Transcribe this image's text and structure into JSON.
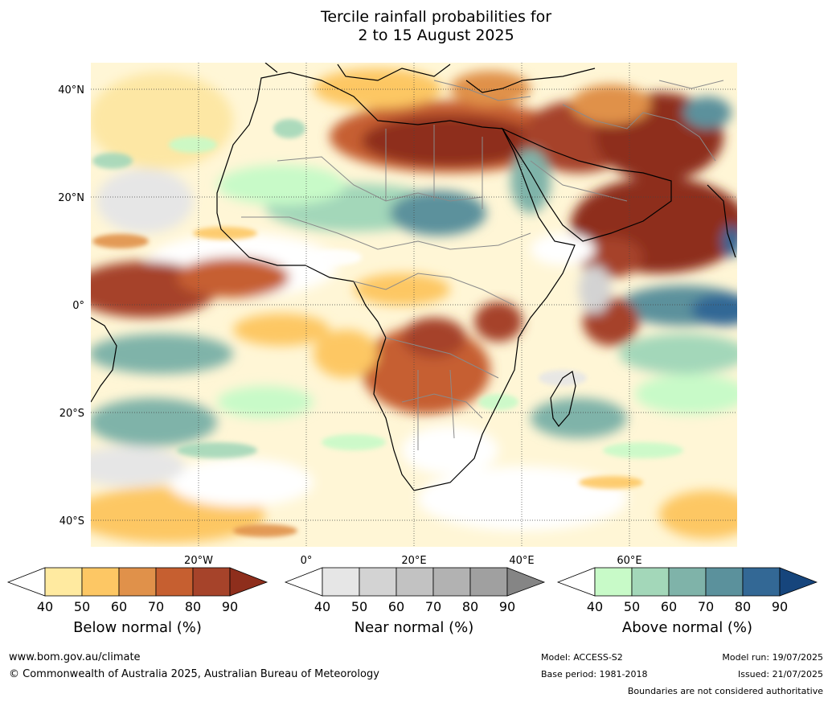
{
  "title": {
    "line1": "Tercile rainfall probabilities for",
    "line2": "2 to 15 August 2025"
  },
  "axes": {
    "lat_labels": [
      "40°N",
      "20°N",
      "0°",
      "20°S",
      "40°S"
    ],
    "lon_labels": [
      "20°W",
      "0°",
      "20°E",
      "40°E",
      "60°E"
    ]
  },
  "colorbars": [
    {
      "name": "below",
      "label": "Below normal (%)",
      "ticks": [
        "40",
        "50",
        "60",
        "70",
        "80",
        "90"
      ],
      "colors": [
        "#ffffff",
        "#ffeaa0",
        "#fdc764",
        "#e0914a",
        "#c65f30",
        "#a6432a",
        "#8e2e1c"
      ]
    },
    {
      "name": "near",
      "label": "Near normal (%)",
      "ticks": [
        "40",
        "50",
        "60",
        "70",
        "80",
        "90"
      ],
      "colors": [
        "#ffffff",
        "#e6e6e6",
        "#d3d3d3",
        "#c2c2c2",
        "#b2b2b2",
        "#a0a0a0",
        "#858585"
      ]
    },
    {
      "name": "above",
      "label": "Above normal (%)",
      "ticks": [
        "40",
        "50",
        "60",
        "70",
        "80",
        "90"
      ],
      "colors": [
        "#ffffff",
        "#c8fac8",
        "#a3d7b9",
        "#7fb3a9",
        "#5b919c",
        "#336895",
        "#16457c"
      ]
    }
  ],
  "footer": {
    "url": "www.bom.gov.au/climate",
    "copyright": "© Commonwealth of Australia 2025, Australian Bureau of Meteorology",
    "model": "Model: ACCESS-S2",
    "base_period": "Base period: 1981-2018",
    "model_run": "Model run: 19/07/2025",
    "issued": "Issued: 21/07/2025",
    "disclaimer": "Boundaries are not considered authoritative"
  },
  "map_colors": {
    "ocean_base": "#fff6d6",
    "coast": "#000000",
    "borders": "#808080",
    "gridline": "#555555"
  }
}
